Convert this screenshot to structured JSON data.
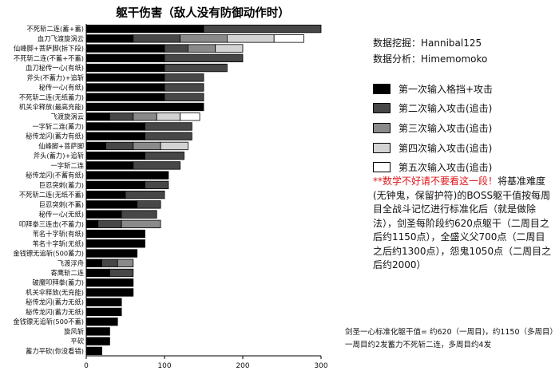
{
  "chart_data": {
    "type": "bar",
    "orientation": "horizontal",
    "stacked": true,
    "title": "躯干伤害（敌人没有防御动作时）",
    "xlim": [
      0,
      300
    ],
    "xticks": [
      0,
      100,
      200,
      300
    ],
    "grid": false,
    "legend_position": "right",
    "categories": [
      "不死斩二连(蓄+蓄)",
      "血刀飞渡旋涡云",
      "仙峰脚+菩萨脚(拆下段)",
      "不死斩二连(不蓄+不蓄)",
      "血刀秘传一心(有纸)",
      "斧头(不蓄力)+追斩",
      "秘传一心(有纸)",
      "不死斩二连(无纸蓄力)",
      "机关伞释放(最高充能)",
      "飞渡旋涡云",
      "一字斩二连(蓄力)",
      "秘传龙闪(蓄力有纸)",
      "仙峰脚+菩萨脚",
      "斧头(蓄力)+追斩",
      "一字斩二连",
      "秘传龙闪(不蓄有纸)",
      "巨忍突刺(蓄力)",
      "不死斩二连(无纸不蓄)",
      "巨忍突刺(不蓄)",
      "秘传一心(无纸)",
      "叩拜拳三连击(不蓄力)",
      "苇名十字斩(有纸)",
      "苇名十字斩(无纸)",
      "金钱镖无追斩(500蓄力)",
      "飞渡浮舟",
      "寄鹰斩二连",
      "破魔叩拜拳(蓄力)",
      "机关伞释放(无充能)",
      "秘传龙闪(蓄力无纸)",
      "秘传龙闪(蓄力无纸)",
      "金钱镖无追斩(500不蓄)",
      "旋风斩",
      "平砍",
      "蓄力平砍(你没看错)"
    ],
    "series": [
      {
        "name": "第一次输入格挡+攻击",
        "color": "#000000",
        "values": [
          150,
          60,
          100,
          100,
          100,
          100,
          100,
          100,
          150,
          30,
          75,
          75,
          25,
          75,
          60,
          105,
          75,
          50,
          65,
          45,
          15,
          75,
          75,
          65,
          20,
          30,
          60,
          60,
          45,
          45,
          40,
          30,
          30,
          20
        ]
      },
      {
        "name": "第二次输入攻击(追击)",
        "color": "#474747",
        "values": [
          150,
          60,
          30,
          100,
          80,
          50,
          50,
          50,
          0,
          30,
          60,
          60,
          35,
          50,
          60,
          0,
          30,
          50,
          30,
          45,
          30,
          0,
          0,
          0,
          20,
          30,
          0,
          0,
          0,
          0,
          0,
          0,
          0,
          0
        ]
      },
      {
        "name": "第三次输入攻击(追击)",
        "color": "#8a8a8a",
        "values": [
          0,
          60,
          35,
          0,
          0,
          0,
          0,
          0,
          0,
          30,
          0,
          0,
          35,
          0,
          0,
          0,
          0,
          0,
          0,
          0,
          50,
          0,
          0,
          0,
          20,
          0,
          0,
          0,
          0,
          0,
          0,
          0,
          0,
          0
        ]
      },
      {
        "name": "第四次输入攻击(追击)",
        "color": "#d3d3d3",
        "values": [
          0,
          60,
          35,
          0,
          0,
          0,
          0,
          0,
          0,
          30,
          0,
          0,
          35,
          0,
          0,
          0,
          0,
          0,
          0,
          0,
          0,
          0,
          0,
          0,
          0,
          0,
          0,
          0,
          0,
          0,
          0,
          0,
          0,
          0
        ]
      },
      {
        "name": "第五次输入攻击(追击)",
        "color": "#ffffff",
        "values": [
          0,
          38,
          0,
          0,
          0,
          0,
          0,
          0,
          0,
          25,
          0,
          0,
          0,
          0,
          0,
          0,
          0,
          0,
          0,
          0,
          0,
          0,
          0,
          0,
          0,
          0,
          0,
          0,
          0,
          0,
          0,
          0,
          0,
          0
        ]
      }
    ]
  },
  "credits": {
    "mining": "数据挖掘：Hannibal125",
    "analysis": "数据分析：Himemomoko"
  },
  "note": {
    "warning": "**数学不好请不要看这一段！",
    "body": "将基准难度(无钟鬼，保留护符)的BOSS躯干值按每周目全战斗记忆进行标准化后（就是做除法），剑圣每阶段约620点躯干（二周目之后约1150点），全盛义父700点（二周目之后约1300点），怨鬼1050点（二周目之后约2000）"
  },
  "footer": {
    "line1": "剑圣一心标准化躯干值= 约620（一周目)，约1150（多周目）",
    "line2": "一周目约2发蓄力不死斩二连，多周目约4发"
  }
}
